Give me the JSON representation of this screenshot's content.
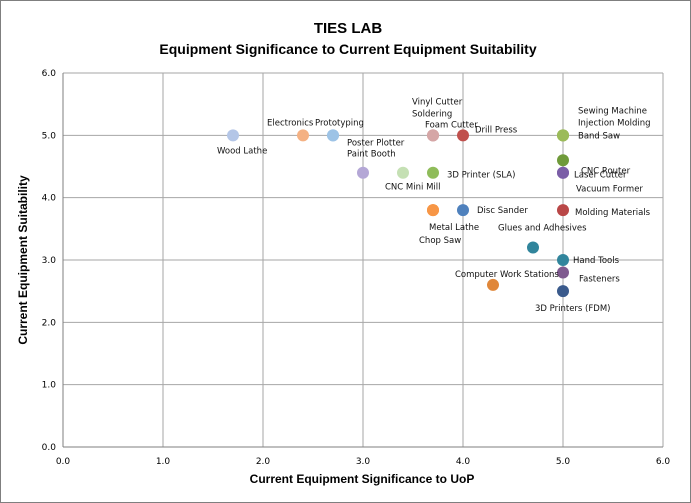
{
  "chart_data": {
    "type": "scatter",
    "title": "TIES LAB",
    "subtitle": "Equipment Significance to Current Equipment Suitability",
    "xlabel": "Current Equipment Significance to UoP",
    "ylabel": "Current Equipment Suitability",
    "xlim": [
      0,
      6
    ],
    "ylim": [
      0,
      6
    ],
    "x_ticks": [
      "0.0",
      "1.0",
      "2.0",
      "3.0",
      "4.0",
      "5.0",
      "6.0"
    ],
    "y_ticks": [
      "0.0",
      "1.0",
      "2.0",
      "3.0",
      "4.0",
      "5.0",
      "6.0"
    ],
    "grid": true,
    "legend": "none",
    "points": [
      {
        "label": "Wood Lathe",
        "x": 1.7,
        "y": 5.0,
        "color": "#b4c6e7"
      },
      {
        "label": "Electronics",
        "x": 2.4,
        "y": 5.0,
        "color": "#f4b183"
      },
      {
        "label": "Prototyping",
        "x": 2.7,
        "y": 5.0,
        "color": "#9dc3e6"
      },
      {
        "label": "Poster Plotter",
        "x": 2.7,
        "y": 5.0,
        "color": "#9dc3e6"
      },
      {
        "label": "Paint Booth",
        "x": 3.0,
        "y": 4.4,
        "color": "#b4a7d6"
      },
      {
        "label": "CNC Mini Mill",
        "x": 3.4,
        "y": 4.4,
        "color": "#c5e0b4"
      },
      {
        "label": "3D Printer  (SLA)",
        "x": 3.7,
        "y": 4.4,
        "color": "#8fbc5a"
      },
      {
        "label": "Vinyl Cutter",
        "x": 3.7,
        "y": 5.0,
        "color": "#d5a6a6"
      },
      {
        "label": "Soldering",
        "x": 3.7,
        "y": 5.0,
        "color": "#d5a6a6"
      },
      {
        "label": "Foam Cutter",
        "x": 3.7,
        "y": 5.0,
        "color": "#d5a6a6"
      },
      {
        "label": "Drill  Press",
        "x": 4.0,
        "y": 5.0,
        "color": "#c0504d"
      },
      {
        "label": "Metal Lathe",
        "x": 3.7,
        "y": 3.8,
        "color": "#f79646"
      },
      {
        "label": "Chop Saw",
        "x": 3.7,
        "y": 3.8,
        "color": "#f79646"
      },
      {
        "label": "Disc Sander",
        "x": 4.0,
        "y": 3.8,
        "color": "#4f81bd"
      },
      {
        "label": "Glues and Adhesives",
        "x": 4.7,
        "y": 3.2,
        "color": "#31859c"
      },
      {
        "label": "Computer Work Stations",
        "x": 4.3,
        "y": 2.6,
        "color": "#e0873a"
      },
      {
        "label": "Sewing Machine",
        "x": 5.0,
        "y": 5.0,
        "color": "#9bbb59"
      },
      {
        "label": "Injection  Molding",
        "x": 5.0,
        "y": 5.0,
        "color": "#9bbb59"
      },
      {
        "label": "Band Saw",
        "x": 5.0,
        "y": 5.0,
        "color": "#9bbb59"
      },
      {
        "label": "CNC Router",
        "x": 5.0,
        "y": 4.6,
        "color": "#6f9a3a"
      },
      {
        "label": "Laser Cutter",
        "x": 5.0,
        "y": 4.4,
        "color": "#7b5ea7"
      },
      {
        "label": "Vacuum Former",
        "x": 5.0,
        "y": 4.4,
        "color": "#7b5ea7"
      },
      {
        "label": "Molding Materials",
        "x": 5.0,
        "y": 3.8,
        "color": "#b94747"
      },
      {
        "label": "Hand Tools",
        "x": 5.0,
        "y": 3.0,
        "color": "#31859c"
      },
      {
        "label": "Fasteners",
        "x": 5.0,
        "y": 2.8,
        "color": "#7f5a8f"
      },
      {
        "label": "3D Printers  (FDM)",
        "x": 5.0,
        "y": 2.5,
        "color": "#3a5a8c"
      }
    ]
  }
}
